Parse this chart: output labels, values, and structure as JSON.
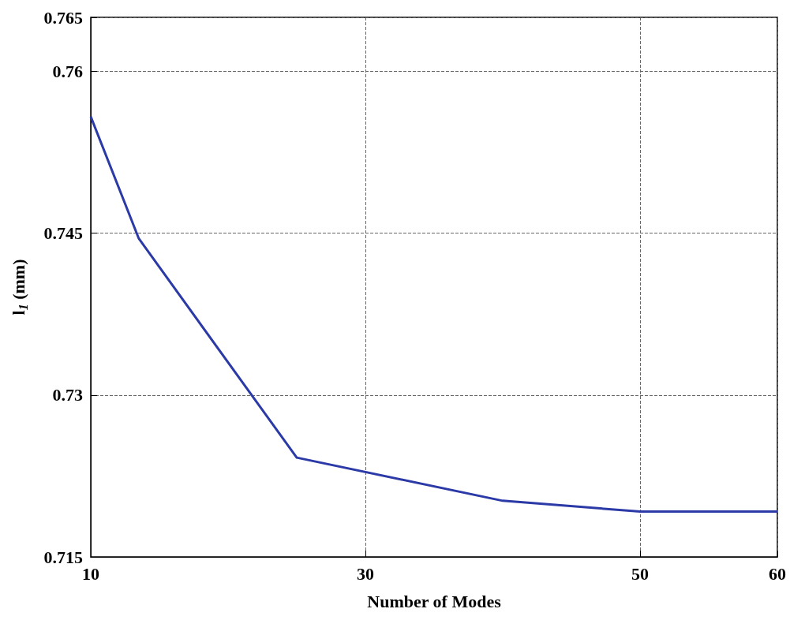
{
  "chart_data": {
    "type": "line",
    "xlabel": "Number of Modes",
    "ylabel": "l$_{1}$ (mm)",
    "x": [
      10,
      13.5,
      25,
      40,
      50,
      60
    ],
    "series": [
      {
        "color": "#2b3aa6",
        "values": [
          0.7558,
          0.7445,
          0.7242,
          0.7202,
          0.7192,
          0.7192
        ]
      }
    ],
    "xlim": [
      10,
      60
    ],
    "xticks": [
      10,
      30,
      50,
      60
    ],
    "ylim": [
      0.715,
      0.765
    ],
    "yticks": [
      0.715,
      0.73,
      0.745,
      0.76,
      0.765
    ],
    "grid": true,
    "marker": "none",
    "line_style": "solid"
  }
}
